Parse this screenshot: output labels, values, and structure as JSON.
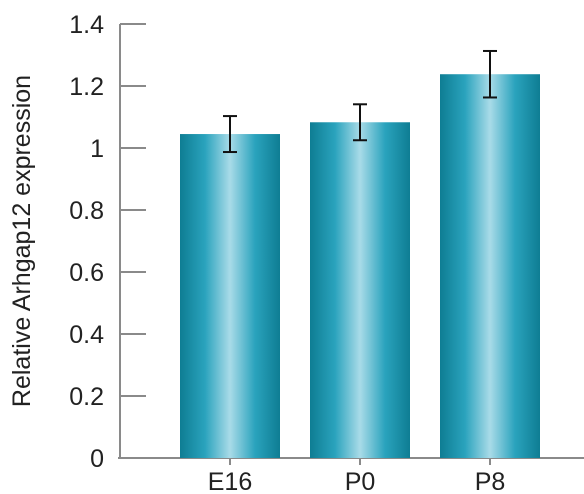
{
  "chart_data": {
    "type": "bar",
    "categories": [
      "E16",
      "P0",
      "P8"
    ],
    "values": [
      1.045,
      1.083,
      1.238
    ],
    "error": [
      0.058,
      0.058,
      0.075
    ],
    "title": "",
    "xlabel": "",
    "ylabel": "Relative Arhgap12 expression",
    "ylim": [
      0,
      1.4
    ],
    "yticks": [
      0,
      0.2,
      0.4,
      0.6,
      0.8,
      1,
      1.2,
      1.4
    ],
    "ytick_labels": [
      "0",
      "0.2",
      "0.4",
      "0.6",
      "0.8",
      "1",
      "1.2",
      "1.4"
    ],
    "grid": false,
    "legend": "none",
    "colors": {
      "bar_dark": "#0e7d93",
      "bar_mid": "#2aa3bd",
      "bar_light": "#a9dbe8",
      "axis": "#8a8a8a",
      "error_bar": "#111111",
      "text": "#222222"
    }
  }
}
